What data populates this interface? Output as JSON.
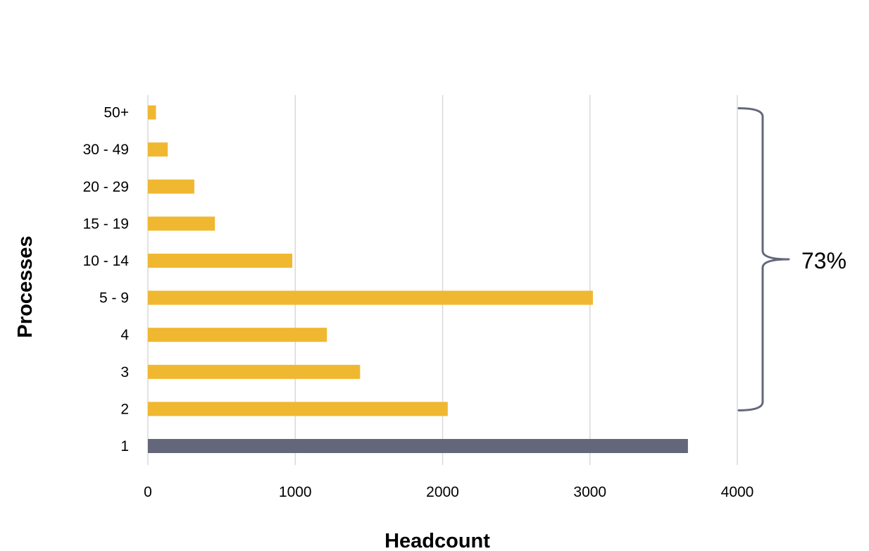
{
  "chart_data": {
    "type": "bar",
    "orientation": "horizontal",
    "title": "",
    "xlabel": "Headcount",
    "ylabel": "Processes",
    "categories": [
      "1",
      "2",
      "3",
      "4",
      "5 - 9",
      "10 - 14",
      "15 - 19",
      "20 - 29",
      "30 - 49",
      "50+"
    ],
    "values": [
      3665,
      2035,
      1440,
      1215,
      3020,
      980,
      455,
      315,
      135,
      55
    ],
    "bar_colors": [
      "#636779",
      "#f0b830",
      "#f0b830",
      "#f0b830",
      "#f0b830",
      "#f0b830",
      "#f0b830",
      "#f0b830",
      "#f0b830",
      "#f0b830"
    ],
    "xlim": [
      0,
      4000
    ],
    "xticks": [
      0,
      1000,
      2000,
      3000,
      4000
    ],
    "grid": "vertical",
    "legend": "none",
    "annotation": {
      "type": "brace",
      "spans_categories": [
        "2",
        "50+"
      ],
      "label": "73%",
      "color": "#636779"
    }
  }
}
